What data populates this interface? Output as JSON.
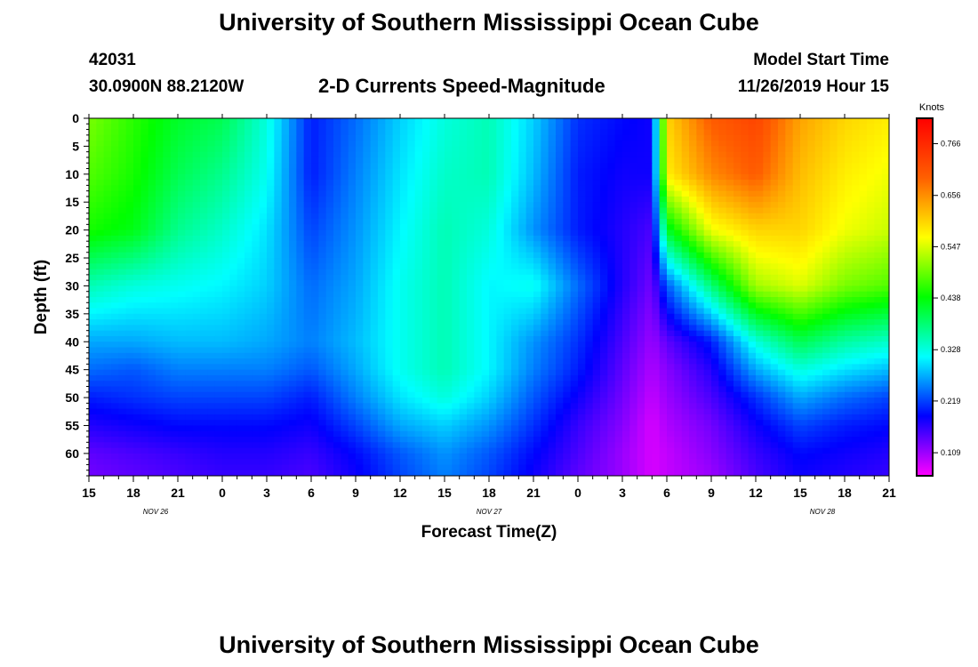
{
  "header": {
    "title_top": "University of Southern Mississippi Ocean Cube",
    "station_id": "42031",
    "coordinates": "30.0900N 88.2120W",
    "chart_title": "2-D Currents Speed-Magnitude",
    "model_start_label": "Model Start Time",
    "model_start_value": "11/26/2019 Hour 15",
    "title_bottom": "University of Southern Mississippi Ocean Cube"
  },
  "chart_data": {
    "type": "heatmap",
    "title": "2-D Currents Speed-Magnitude",
    "xlabel": "Forecast Time(Z)",
    "ylabel": "Depth (ft)",
    "x_tick_labels": [
      "15",
      "18",
      "21",
      "0",
      "3",
      "6",
      "9",
      "12",
      "15",
      "18",
      "21",
      "0",
      "3",
      "6",
      "9",
      "12",
      "15",
      "18",
      "21"
    ],
    "x_hours": [
      0,
      3,
      6,
      9,
      12,
      15,
      18,
      21,
      24,
      27,
      30,
      33,
      36,
      39,
      42,
      45,
      48,
      51,
      54
    ],
    "date_labels": [
      {
        "text": "NOV  26",
        "hour": 4.5
      },
      {
        "text": "NOV  27",
        "hour": 27
      },
      {
        "text": "NOV  28",
        "hour": 49.5
      }
    ],
    "y_ticks": [
      0,
      5,
      10,
      15,
      20,
      25,
      30,
      35,
      40,
      45,
      50,
      55,
      60
    ],
    "ylim": [
      0,
      64
    ],
    "xlim": [
      0,
      54
    ],
    "y_inverted": true,
    "colorbar": {
      "unit": "Knots",
      "labels": [
        "0.766",
        "0.656",
        "0.547",
        "0.438",
        "0.328",
        "0.219",
        "0.109"
      ],
      "colors": [
        "#ff0000",
        "#ff6000",
        "#ffff00",
        "#00ff00",
        "#00ffff",
        "#0000ff",
        "#ff00ff"
      ],
      "range": [
        0.06,
        0.82
      ]
    },
    "speed_grid_knots": {
      "x_hours": [
        0,
        3,
        6,
        9,
        12,
        15,
        18,
        21,
        24,
        27,
        30,
        33,
        36,
        38,
        39,
        42,
        45,
        48,
        51,
        54
      ],
      "depths_ft": [
        0,
        10,
        20,
        30,
        40,
        45,
        50,
        55,
        60,
        64
      ],
      "values": [
        [
          0.5,
          0.46,
          0.42,
          0.4,
          0.33,
          0.2,
          0.24,
          0.29,
          0.33,
          0.35,
          0.29,
          0.21,
          0.19,
          0.18,
          0.6,
          0.7,
          0.73,
          0.64,
          0.6,
          0.58
        ],
        [
          0.48,
          0.45,
          0.4,
          0.37,
          0.32,
          0.2,
          0.25,
          0.3,
          0.34,
          0.35,
          0.28,
          0.2,
          0.18,
          0.18,
          0.58,
          0.66,
          0.7,
          0.62,
          0.58,
          0.56
        ],
        [
          0.45,
          0.43,
          0.37,
          0.34,
          0.3,
          0.22,
          0.26,
          0.31,
          0.35,
          0.33,
          0.26,
          0.2,
          0.17,
          0.15,
          0.42,
          0.56,
          0.6,
          0.6,
          0.56,
          0.54
        ],
        [
          0.35,
          0.33,
          0.32,
          0.31,
          0.29,
          0.24,
          0.27,
          0.32,
          0.35,
          0.31,
          0.32,
          0.24,
          0.17,
          0.13,
          0.23,
          0.38,
          0.52,
          0.55,
          0.5,
          0.48
        ],
        [
          0.27,
          0.27,
          0.28,
          0.28,
          0.27,
          0.25,
          0.28,
          0.32,
          0.35,
          0.31,
          0.26,
          0.21,
          0.15,
          0.11,
          0.14,
          0.2,
          0.33,
          0.4,
          0.36,
          0.34
        ],
        [
          0.24,
          0.23,
          0.25,
          0.25,
          0.25,
          0.23,
          0.27,
          0.32,
          0.35,
          0.31,
          0.25,
          0.2,
          0.14,
          0.1,
          0.12,
          0.17,
          0.27,
          0.33,
          0.3,
          0.28
        ],
        [
          0.2,
          0.21,
          0.22,
          0.22,
          0.22,
          0.2,
          0.25,
          0.3,
          0.33,
          0.29,
          0.23,
          0.18,
          0.13,
          0.09,
          0.11,
          0.15,
          0.21,
          0.27,
          0.24,
          0.22
        ],
        [
          0.17,
          0.18,
          0.19,
          0.19,
          0.19,
          0.18,
          0.22,
          0.27,
          0.29,
          0.26,
          0.21,
          0.16,
          0.12,
          0.08,
          0.1,
          0.13,
          0.18,
          0.22,
          0.2,
          0.19
        ],
        [
          0.14,
          0.15,
          0.16,
          0.17,
          0.17,
          0.16,
          0.19,
          0.23,
          0.26,
          0.23,
          0.19,
          0.15,
          0.11,
          0.08,
          0.09,
          0.12,
          0.16,
          0.19,
          0.18,
          0.17
        ],
        [
          0.13,
          0.14,
          0.15,
          0.16,
          0.16,
          0.15,
          0.18,
          0.22,
          0.25,
          0.22,
          0.18,
          0.14,
          0.11,
          0.08,
          0.09,
          0.11,
          0.15,
          0.18,
          0.17,
          0.16
        ]
      ]
    }
  }
}
